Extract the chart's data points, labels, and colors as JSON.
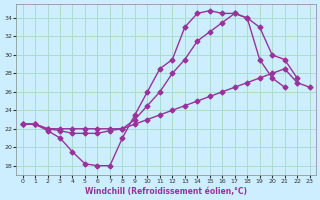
{
  "xlabel": "Windchill (Refroidissement éolien,°C)",
  "background_color": "#cceeff",
  "grid_color": "#aaddcc",
  "line_color": "#993399",
  "xlim": [
    -0.5,
    23.5
  ],
  "ylim": [
    17,
    35.5
  ],
  "yticks": [
    18,
    20,
    22,
    24,
    26,
    28,
    30,
    32,
    34
  ],
  "xticks": [
    0,
    1,
    2,
    3,
    4,
    5,
    6,
    7,
    8,
    9,
    10,
    11,
    12,
    13,
    14,
    15,
    16,
    17,
    18,
    19,
    20,
    21,
    22,
    23
  ],
  "line1_x": [
    0,
    1,
    2,
    3,
    4,
    5,
    6,
    7,
    8,
    9,
    10,
    11,
    12,
    13,
    14,
    15,
    16,
    17,
    18,
    19,
    20,
    21
  ],
  "line1_y": [
    22.5,
    22.5,
    21.8,
    21.0,
    19.5,
    18.2,
    18.0,
    18.0,
    21.0,
    23.5,
    26.0,
    28.5,
    29.5,
    33.0,
    34.5,
    34.8,
    34.5,
    34.5,
    34.0,
    29.5,
    27.5,
    26.5
  ],
  "line2_x": [
    0,
    1,
    2,
    3,
    4,
    5,
    6,
    7,
    8,
    9,
    10,
    11,
    12,
    13,
    14,
    15,
    16,
    17,
    18,
    19,
    20,
    21,
    22
  ],
  "line2_y": [
    22.5,
    22.5,
    22.0,
    21.8,
    21.5,
    21.5,
    21.5,
    21.8,
    22.0,
    23.0,
    24.5,
    26.0,
    28.0,
    29.5,
    31.5,
    32.5,
    33.5,
    34.5,
    34.0,
    33.0,
    30.0,
    29.5,
    27.5
  ],
  "line3_x": [
    0,
    1,
    2,
    3,
    4,
    5,
    6,
    7,
    8,
    9,
    10,
    11,
    12,
    13,
    14,
    15,
    16,
    17,
    18,
    19,
    20,
    21,
    22,
    23
  ],
  "line3_y": [
    22.5,
    22.5,
    22.0,
    22.0,
    22.0,
    22.0,
    22.0,
    22.0,
    22.0,
    22.5,
    23.0,
    23.5,
    24.0,
    24.5,
    25.0,
    25.5,
    26.0,
    26.5,
    27.0,
    27.5,
    28.0,
    28.5,
    27.0,
    26.5
  ]
}
